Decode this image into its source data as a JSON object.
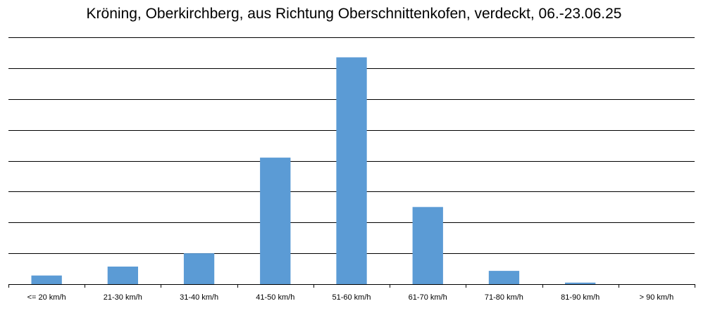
{
  "chart_data": {
    "type": "bar",
    "title": "Kröning, Oberkirchberg, aus Richtung Oberschnittenkofen, verdeckt, 06.-23.06.25",
    "categories": [
      "<= 20 km/h",
      "21-30 km/h",
      "31-40 km/h",
      "41-50 km/h",
      "51-60 km/h",
      "61-70 km/h",
      "71-80 km/h",
      "81-90 km/h",
      "> 90 km/h"
    ],
    "values": [
      0.28,
      0.57,
      1.0,
      4.1,
      7.35,
      2.5,
      0.43,
      0.05,
      0
    ],
    "ylim": [
      0,
      8
    ],
    "grid": true,
    "gridlines": 8,
    "xlabel": "",
    "ylabel": "",
    "bar_color": "#5b9bd5",
    "grid_color": "#000000"
  }
}
